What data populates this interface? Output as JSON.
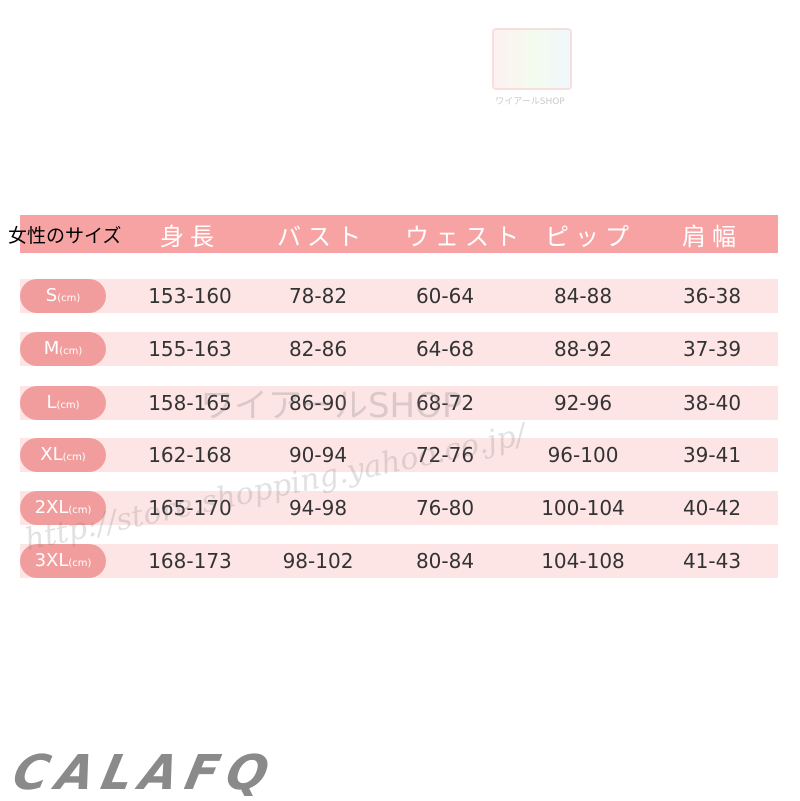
{
  "shop_logo": {
    "text": "ワイアールSHOP"
  },
  "chart": {
    "title": "女性のサイズ",
    "columns": [
      "身長",
      "バスト",
      "ウェスト",
      "ピップ",
      "肩幅"
    ],
    "unit": "(cm)",
    "rows": [
      {
        "size": "S",
        "values": [
          "153-160",
          "78-82",
          "60-64",
          "84-88",
          "36-38"
        ]
      },
      {
        "size": "M",
        "values": [
          "155-163",
          "82-86",
          "64-68",
          "88-92",
          "37-39"
        ]
      },
      {
        "size": "L",
        "values": [
          "158-165",
          "86-90",
          "68-72",
          "92-96",
          "38-40"
        ]
      },
      {
        "size": "XL",
        "values": [
          "162-168",
          "90-94",
          "72-76",
          "96-100",
          "39-41"
        ]
      },
      {
        "size": "2XL",
        "values": [
          "165-170",
          "94-98",
          "76-80",
          "100-104",
          "40-42"
        ]
      },
      {
        "size": "3XL",
        "values": [
          "168-173",
          "98-102",
          "80-84",
          "104-108",
          "41-43"
        ]
      }
    ]
  },
  "watermark": {
    "text": "ワイアールSHOP",
    "script": "http://store.shopping.yahoo.co.jp/"
  },
  "brand": "CALAFQ",
  "colors": {
    "header": "#f7a3a3",
    "row_band": "#fde5e5",
    "size_pill": "#f29d9d",
    "brand": "#8a8a8a"
  }
}
